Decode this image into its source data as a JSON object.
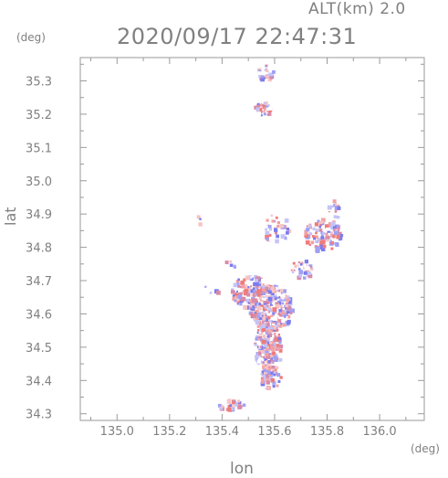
{
  "header": {
    "altitude": "ALT(km) 2.0",
    "timestamp": "2020/09/17 22:47:31"
  },
  "chart_data": {
    "type": "heatmap",
    "xlabel": "lon",
    "ylabel": "lat",
    "xunit": "(deg)",
    "yunit": "(deg)",
    "xlim": [
      134.86,
      136.17
    ],
    "ylim": [
      34.28,
      35.37
    ],
    "x_ticks": [
      "135.0",
      "135.2",
      "135.4",
      "135.6",
      "135.8",
      "136.0"
    ],
    "x_tick_values": [
      135.0,
      135.2,
      135.4,
      135.6,
      135.8,
      136.0
    ],
    "y_ticks": [
      "34.3",
      "34.4",
      "34.5",
      "34.6",
      "34.7",
      "34.8",
      "34.9",
      "35.0",
      "35.1",
      "35.2",
      "35.3"
    ],
    "y_tick_values": [
      34.3,
      34.4,
      34.5,
      34.6,
      34.7,
      34.8,
      34.9,
      35.0,
      35.1,
      35.2,
      35.3
    ],
    "colors": {
      "positive": "#f08a8a",
      "negative": "#8a8af0",
      "frame": "#9a9a9a"
    }
  }
}
